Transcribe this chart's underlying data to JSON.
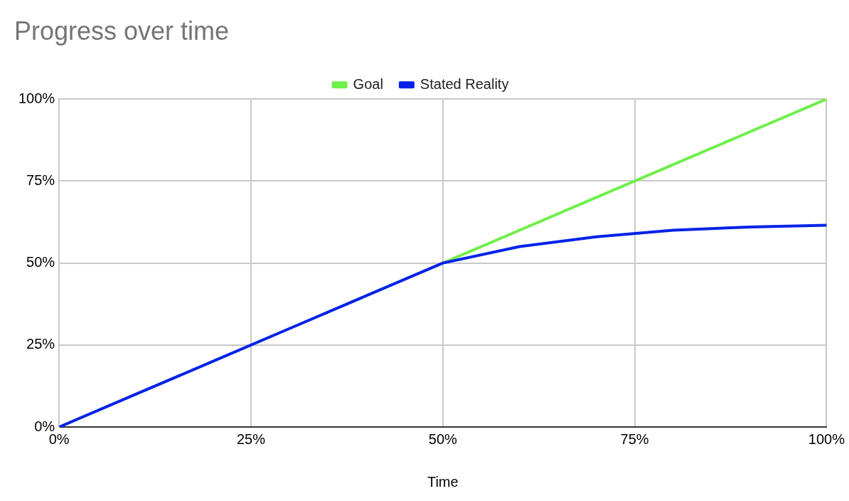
{
  "chart_data": {
    "type": "line",
    "title": "Progress over time",
    "xlabel": "Time",
    "x": [
      0,
      10,
      20,
      30,
      40,
      50,
      60,
      70,
      80,
      90,
      100
    ],
    "series": [
      {
        "name": "Goal",
        "color": "#6ef04a",
        "values": [
          null,
          null,
          null,
          null,
          null,
          50,
          60,
          70,
          80,
          90,
          100
        ]
      },
      {
        "name": "Stated Reality",
        "color": "#0022e8",
        "values": [
          0,
          10,
          20,
          30,
          40,
          50,
          55,
          58,
          60,
          61,
          61.5
        ]
      }
    ],
    "xlim": [
      0,
      100
    ],
    "xticks": [
      {
        "value": 0,
        "label": "0%"
      },
      {
        "value": 25,
        "label": "25%"
      },
      {
        "value": 50,
        "label": "50%"
      },
      {
        "value": 75,
        "label": "75%"
      },
      {
        "value": 100,
        "label": "100%"
      }
    ],
    "ylim": [
      0,
      100
    ],
    "yticks": [
      {
        "value": 0,
        "label": "0%"
      },
      {
        "value": 25,
        "label": "25%"
      },
      {
        "value": 50,
        "label": "50%"
      },
      {
        "value": 75,
        "label": "75%"
      },
      {
        "value": 100,
        "label": "100%"
      }
    ],
    "grid": true,
    "legend": "top",
    "marker": "none",
    "line_style": "solid"
  }
}
